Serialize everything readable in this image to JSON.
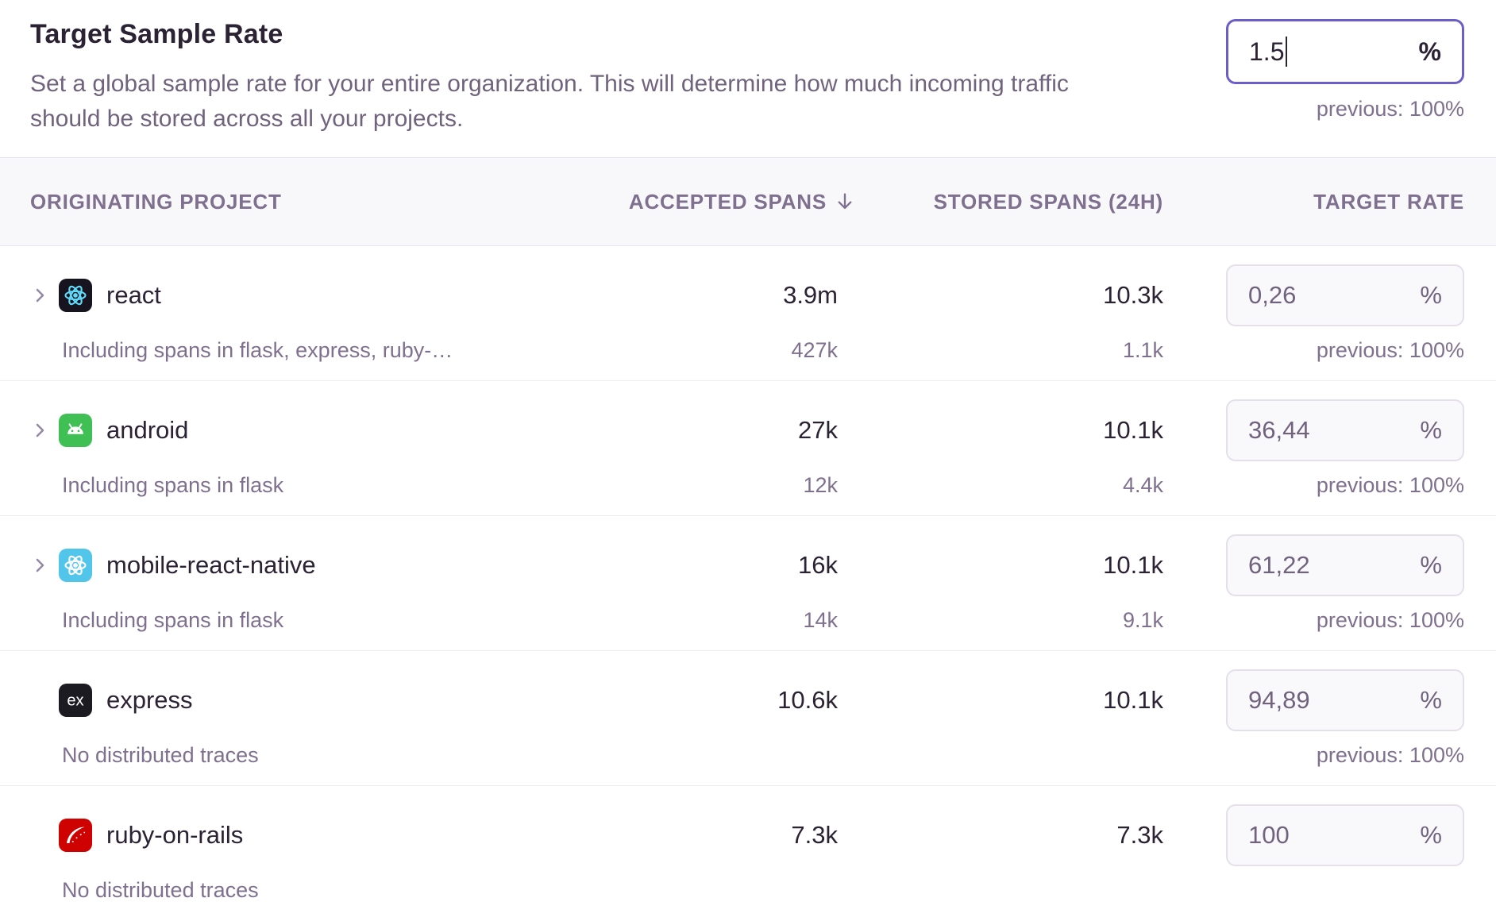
{
  "header": {
    "title": "Target Sample Rate",
    "description_line1": "Set a global sample rate for your entire organization. This will determine how much incoming traffic",
    "description_line2": "should be stored across all your projects.",
    "rate_input": {
      "value": "1.5",
      "unit": "%",
      "previous": "previous: 100%"
    }
  },
  "table": {
    "columns": {
      "project": "ORIGINATING PROJECT",
      "accepted": "ACCEPTED SPANS",
      "accepted_sort_icon": "arrow-down",
      "stored": "STORED SPANS (24H)",
      "target": "TARGET RATE"
    },
    "rows": [
      {
        "name": "react",
        "platform": "react",
        "expandable": true,
        "accepted": "3.9m",
        "stored": "10.3k",
        "rate": "0,26",
        "unit": "%",
        "sub_label": "Including spans in flask, express, ruby-…",
        "sub_accepted": "427k",
        "sub_stored": "1.1k",
        "previous": "previous: 100%"
      },
      {
        "name": "android",
        "platform": "android",
        "expandable": true,
        "accepted": "27k",
        "stored": "10.1k",
        "rate": "36,44",
        "unit": "%",
        "sub_label": "Including spans in flask",
        "sub_accepted": "12k",
        "sub_stored": "4.4k",
        "previous": "previous: 100%"
      },
      {
        "name": "mobile-react-native",
        "platform": "react-native",
        "expandable": true,
        "accepted": "16k",
        "stored": "10.1k",
        "rate": "61,22",
        "unit": "%",
        "sub_label": "Including spans in flask",
        "sub_accepted": "14k",
        "sub_stored": "9.1k",
        "previous": "previous: 100%"
      },
      {
        "name": "express",
        "platform": "express",
        "expandable": false,
        "accepted": "10.6k",
        "stored": "10.1k",
        "rate": "94,89",
        "unit": "%",
        "sub_label": "No distributed traces",
        "sub_accepted": "",
        "sub_stored": "",
        "previous": "previous: 100%"
      },
      {
        "name": "ruby-on-rails",
        "platform": "ruby-on-rails",
        "expandable": false,
        "accepted": "7.3k",
        "stored": "7.3k",
        "rate": "100",
        "unit": "%",
        "sub_label": "No distributed traces",
        "sub_accepted": "",
        "sub_stored": "",
        "previous": ""
      }
    ]
  },
  "colors": {
    "accent_focus_border": "#6b5ec9",
    "muted_text": "#80708f",
    "dark_text": "#2b2233",
    "react_icon_bg": "#17141f",
    "react_logo": "#61dafb",
    "android_icon_bg": "#3fbf54",
    "react_native_icon_bg": "#52c6ea",
    "express_icon_bg": "#1c1b22",
    "ruby_icon_bg": "#cf0202"
  }
}
